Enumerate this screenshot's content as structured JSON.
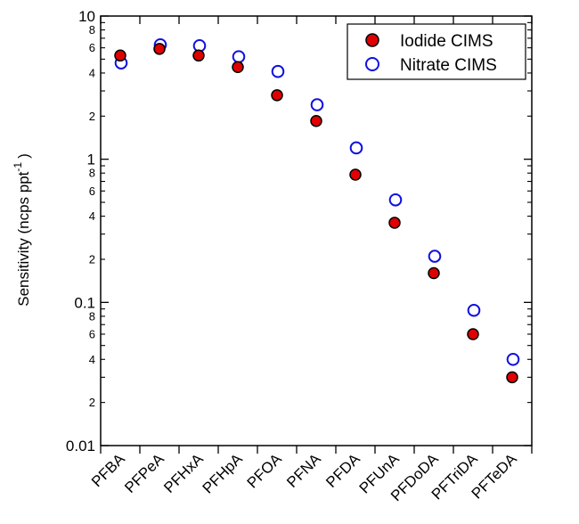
{
  "chart_data": {
    "type": "scatter",
    "yscale": "log",
    "ylim": [
      0.01,
      10
    ],
    "ylabel": "Sensitivity (ncps ppt",
    "ylabel_superscript": "-1",
    "ylabel_suffix": ")",
    "xlabel": "",
    "title": "",
    "categories": [
      "PFBA",
      "PFPeA",
      "PFHxA",
      "PFHpA",
      "PFOA",
      "PFNA",
      "PFDA",
      "PFUnA",
      "PFDoDA",
      "PFTriDA",
      "PFTeDA"
    ],
    "major_ticks": [
      {
        "value": 0.01,
        "label": "0.01"
      },
      {
        "value": 0.1,
        "label": "0.1"
      },
      {
        "value": 1,
        "label": "1"
      },
      {
        "value": 10,
        "label": "10"
      }
    ],
    "minor_ticks": [
      {
        "value": 0.02,
        "label": "2"
      },
      {
        "value": 0.04,
        "label": "4"
      },
      {
        "value": 0.06,
        "label": "6"
      },
      {
        "value": 0.08,
        "label": "8"
      },
      {
        "value": 0.2,
        "label": "2"
      },
      {
        "value": 0.4,
        "label": "4"
      },
      {
        "value": 0.6,
        "label": "6"
      },
      {
        "value": 0.8,
        "label": "8"
      },
      {
        "value": 2,
        "label": "2"
      },
      {
        "value": 4,
        "label": "4"
      },
      {
        "value": 6,
        "label": "6"
      },
      {
        "value": 8,
        "label": "8"
      }
    ],
    "unlabeled_minor": [
      0.03,
      0.05,
      0.07,
      0.09,
      0.3,
      0.5,
      0.7,
      0.9,
      3,
      5,
      7,
      9
    ],
    "legend_position": "top-right",
    "series": [
      {
        "name": "Iodide CIMS",
        "marker": "filled-circle",
        "fill": "#e00000",
        "stroke": "#000000",
        "values": [
          5.3,
          5.9,
          5.3,
          4.4,
          2.8,
          1.85,
          0.78,
          0.36,
          0.16,
          0.06,
          0.03
        ]
      },
      {
        "name": "Nitrate CIMS",
        "marker": "open-circle",
        "fill": "none",
        "stroke": "#1010e0",
        "values": [
          4.7,
          6.3,
          6.2,
          5.2,
          4.1,
          2.4,
          1.2,
          0.52,
          0.21,
          0.088,
          0.04
        ]
      }
    ]
  }
}
